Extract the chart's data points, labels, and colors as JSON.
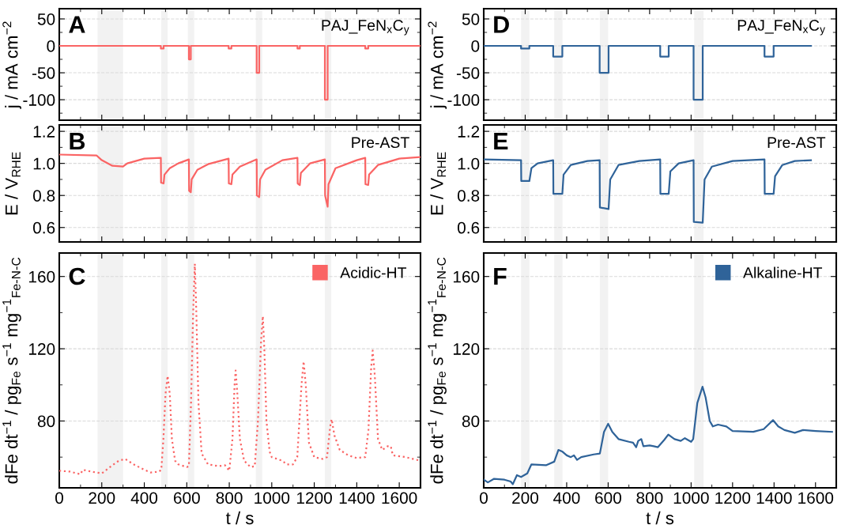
{
  "chart_data": [
    {
      "type": "line",
      "title": "A",
      "ylabel": "j / mA cm$^{−2}$",
      "annotations": [
        "PAJ_FeN$_{x}$C$_{y}$"
      ],
      "xlim": [
        0,
        1700
      ],
      "xticks": [
        0,
        200,
        400,
        600,
        800,
        1000,
        1200,
        1400,
        1600
      ],
      "ylim": [
        -138,
        69
      ],
      "yticks": [
        {
          "value": -100,
          "label": "-100"
        },
        {
          "value": -50,
          "label": "-50"
        },
        0,
        50
      ],
      "grid": "y",
      "tick_labels": "y",
      "bands": [
        {
          "axis": "x",
          "from": 180,
          "to": 300,
          "color": "#f2f2f2"
        },
        {
          "axis": "x",
          "from": 480,
          "to": 510,
          "color": "#f2f2f2"
        },
        {
          "axis": "x",
          "from": 605,
          "to": 635,
          "color": "#f2f2f2"
        },
        {
          "axis": "x",
          "from": 925,
          "to": 955,
          "color": "#f2f2f2"
        },
        {
          "axis": "x",
          "from": 1250,
          "to": 1280,
          "color": "#f2f2f2"
        }
      ],
      "series": [
        {
          "color": "#fa6464",
          "x": [
            0,
            478,
            478,
            491,
            491,
            610,
            610,
            619,
            619,
            797,
            797,
            810,
            810,
            929,
            929,
            941,
            941,
            1121,
            1121,
            1132,
            1132,
            1250,
            1250,
            1263,
            1263,
            1440,
            1440,
            1454,
            1454,
            1700
          ],
          "values": [
            0,
            0,
            -5,
            -5,
            0,
            0,
            -25,
            -25,
            0,
            0,
            -5,
            -5,
            0,
            0,
            -50,
            -50,
            0,
            0,
            -5,
            -5,
            0,
            0,
            -100,
            -100,
            0,
            0,
            -5,
            -5,
            0,
            0
          ]
        }
      ]
    },
    {
      "type": "line",
      "title": "B",
      "ylabel": "E / V$_{RHE}$",
      "annotations": [
        "Pre-AST"
      ],
      "xlim": [
        0,
        1700
      ],
      "xticks": [
        0,
        200,
        400,
        600,
        800,
        1000,
        1200,
        1400,
        1600
      ],
      "ylim": [
        0.51,
        1.24
      ],
      "yticks": [
        {
          "value": 0.6,
          "label": "0.6"
        },
        {
          "value": 0.8,
          "label": "0.8"
        },
        {
          "value": 1.0,
          "label": "1.0"
        },
        {
          "value": 1.2,
          "label": "1.2"
        }
      ],
      "grid": "y",
      "tick_labels": "y",
      "bands": [
        {
          "axis": "x",
          "from": 180,
          "to": 300,
          "color": "#f2f2f2"
        },
        {
          "axis": "x",
          "from": 480,
          "to": 510,
          "color": "#f2f2f2"
        },
        {
          "axis": "x",
          "from": 605,
          "to": 635,
          "color": "#f2f2f2"
        },
        {
          "axis": "x",
          "from": 925,
          "to": 955,
          "color": "#f2f2f2"
        },
        {
          "axis": "x",
          "from": 1250,
          "to": 1280,
          "color": "#f2f2f2"
        }
      ],
      "series": [
        {
          "color": "#fa6464",
          "x": [
            0,
            175,
            200,
            250,
            300,
            320,
            400,
            478,
            479,
            491,
            495,
            520,
            560,
            610,
            611,
            619,
            623,
            650,
            700,
            797,
            798,
            810,
            815,
            850,
            929,
            930,
            941,
            945,
            970,
            1050,
            1121,
            1122,
            1132,
            1137,
            1180,
            1250,
            1251,
            1263,
            1267,
            1300,
            1400,
            1440,
            1441,
            1454,
            1458,
            1500,
            1600,
            1700
          ],
          "values": [
            1.055,
            1.05,
            1.02,
            0.985,
            0.98,
            1.0,
            1.03,
            1.035,
            0.88,
            0.875,
            0.93,
            0.97,
            1.0,
            1.025,
            0.83,
            0.82,
            0.9,
            0.96,
            0.995,
            1.03,
            0.875,
            0.87,
            0.93,
            0.98,
            1.025,
            0.8,
            0.79,
            0.9,
            0.96,
            1.02,
            1.035,
            0.875,
            0.865,
            0.94,
            1.0,
            1.025,
            0.8,
            0.73,
            0.87,
            0.97,
            1.02,
            1.035,
            0.87,
            0.865,
            0.93,
            0.99,
            1.03,
            1.04
          ]
        }
      ]
    },
    {
      "type": "line",
      "title": "C",
      "xlabel": "t / s",
      "ylabel": "dFe dt$^{−1}$ / pg$_{Fe}$ s$^{−1}$ mg$^{−1}$$_{Fe-N-C}$",
      "xlim": [
        0,
        1700
      ],
      "xticks": [
        0,
        200,
        400,
        600,
        800,
        1000,
        1200,
        1400,
        1600
      ],
      "ylim": [
        43,
        173
      ],
      "yticks": [
        80,
        120,
        160
      ],
      "grid": "y",
      "legend": "top right",
      "line_style": "dotted",
      "bands": [
        {
          "axis": "x",
          "from": 180,
          "to": 300,
          "color": "#f2f2f2"
        },
        {
          "axis": "x",
          "from": 480,
          "to": 510,
          "color": "#f2f2f2"
        },
        {
          "axis": "x",
          "from": 605,
          "to": 635,
          "color": "#f2f2f2"
        },
        {
          "axis": "x",
          "from": 925,
          "to": 955,
          "color": "#f2f2f2"
        },
        {
          "axis": "x",
          "from": 1250,
          "to": 1280,
          "color": "#f2f2f2"
        }
      ],
      "series": [
        {
          "name": "Acidic-HT",
          "color": "#fa6464",
          "x": [
            0,
            50,
            100,
            110,
            150,
            200,
            250,
            280,
            310,
            350,
            400,
            430,
            470,
            480,
            490,
            500,
            510,
            520,
            530,
            545,
            560,
            600,
            610,
            620,
            630,
            638,
            645,
            655,
            670,
            700,
            750,
            780,
            800,
            815,
            825,
            830,
            838,
            850,
            870,
            900,
            920,
            935,
            950,
            958,
            965,
            975,
            990,
            1000,
            1050,
            1070,
            1100,
            1120,
            1140,
            1150,
            1160,
            1175,
            1200,
            1240,
            1260,
            1275,
            1282,
            1295,
            1320,
            1360,
            1400,
            1440,
            1455,
            1468,
            1475,
            1485,
            1500,
            1520,
            1545,
            1560,
            1570,
            1630,
            1700
          ],
          "values": [
            52.5,
            52,
            50.5,
            53,
            52,
            51,
            55.5,
            58,
            59,
            56,
            53,
            51.5,
            52,
            53,
            70,
            95,
            105,
            95,
            70,
            58,
            56,
            54.5,
            55,
            90,
            140,
            167,
            140,
            90,
            62,
            56,
            55,
            55.5,
            52.5,
            70,
            100,
            108,
            95,
            70,
            58,
            54.5,
            55,
            80,
            125,
            138,
            120,
            80,
            63,
            60,
            58,
            56,
            56,
            60,
            100,
            113,
            100,
            68,
            60,
            59,
            60,
            77,
            81,
            72,
            64,
            61,
            59.5,
            60,
            75,
            110,
            119,
            105,
            70,
            64,
            66,
            66,
            61,
            60,
            58
          ]
        }
      ]
    },
    {
      "type": "line",
      "title": "D",
      "ylabel": "j / mA cm$^{−2}$",
      "annotations": [
        "PAJ_FeN$_{x}$C$_{y}$"
      ],
      "xlim": [
        0,
        1700
      ],
      "xticks": [
        0,
        200,
        400,
        600,
        800,
        1000,
        1200,
        1400,
        1600
      ],
      "ylim": [
        -138,
        69
      ],
      "yticks": [
        {
          "value": -100,
          "label": "-100"
        },
        {
          "value": -50,
          "label": "-50"
        },
        0,
        50
      ],
      "grid": "y",
      "tick_labels": "y",
      "bands": [
        {
          "axis": "x",
          "from": 180,
          "to": 220,
          "color": "#f2f2f2"
        },
        {
          "axis": "x",
          "from": 340,
          "to": 380,
          "color": "#f2f2f2"
        },
        {
          "axis": "x",
          "from": 560,
          "to": 600,
          "color": "#f2f2f2"
        },
        {
          "axis": "x",
          "from": 1015,
          "to": 1060,
          "color": "#f2f2f2"
        }
      ],
      "series": [
        {
          "color": "#2f6399",
          "x": [
            0,
            180,
            180,
            220,
            220,
            335,
            335,
            379,
            379,
            559,
            559,
            602,
            602,
            851,
            851,
            892,
            892,
            1012,
            1012,
            1056,
            1056,
            1354,
            1354,
            1398,
            1398,
            1578
          ],
          "values": [
            0,
            0,
            -5,
            -5,
            0,
            0,
            -20,
            -20,
            0,
            0,
            -50,
            -50,
            0,
            0,
            -20,
            -20,
            0,
            0,
            -100,
            -100,
            0,
            0,
            -20,
            -20,
            0,
            0
          ]
        }
      ]
    },
    {
      "type": "line",
      "title": "E",
      "ylabel": "E / V$_{RHE}$",
      "annotations": [
        "Pre-AST"
      ],
      "xlim": [
        0,
        1700
      ],
      "xticks": [
        0,
        200,
        400,
        600,
        800,
        1000,
        1200,
        1400,
        1600
      ],
      "ylim": [
        0.51,
        1.24
      ],
      "yticks": [
        {
          "value": 0.6,
          "label": "0.6"
        },
        {
          "value": 0.8,
          "label": "0.8"
        },
        {
          "value": 1.0,
          "label": "1.0"
        },
        {
          "value": 1.2,
          "label": "1.2"
        }
      ],
      "grid": "y",
      "tick_labels": "y",
      "bands": [
        {
          "axis": "x",
          "from": 180,
          "to": 220,
          "color": "#f2f2f2"
        },
        {
          "axis": "x",
          "from": 340,
          "to": 380,
          "color": "#f2f2f2"
        },
        {
          "axis": "x",
          "from": 560,
          "to": 600,
          "color": "#f2f2f2"
        },
        {
          "axis": "x",
          "from": 1015,
          "to": 1060,
          "color": "#f2f2f2"
        }
      ],
      "series": [
        {
          "color": "#2f6399",
          "x": [
            0,
            180,
            181,
            220,
            230,
            260,
            335,
            336,
            379,
            385,
            420,
            500,
            559,
            560,
            602,
            610,
            650,
            750,
            851,
            852,
            892,
            900,
            940,
            1012,
            1013,
            1056,
            1065,
            1100,
            1200,
            1354,
            1355,
            1398,
            1405,
            1440,
            1500,
            1578
          ],
          "values": [
            1.025,
            1.02,
            0.89,
            0.89,
            0.97,
            1.0,
            1.02,
            0.81,
            0.81,
            0.93,
            0.99,
            1.015,
            1.02,
            0.725,
            0.715,
            0.9,
            0.99,
            1.015,
            1.025,
            0.81,
            0.81,
            0.95,
            1.0,
            1.02,
            0.635,
            0.63,
            0.9,
            0.98,
            1.015,
            1.025,
            0.81,
            0.81,
            0.92,
            0.99,
            1.015,
            1.02
          ]
        }
      ]
    },
    {
      "type": "line",
      "title": "F",
      "xlabel": "t / s",
      "ylabel": "dFe dt$^{−1}$ / pg$_{Fe}$ s$^{−1}$ mg$^{−1}$$_{Fe-N-C}$",
      "xlim": [
        0,
        1700
      ],
      "xticks": [
        0,
        200,
        400,
        600,
        800,
        1000,
        1200,
        1400,
        1600
      ],
      "ylim": [
        43,
        173
      ],
      "yticks": [
        80,
        120,
        160
      ],
      "grid": "y",
      "legend": "top right",
      "bands": [
        {
          "axis": "x",
          "from": 180,
          "to": 220,
          "color": "#f2f2f2"
        },
        {
          "axis": "x",
          "from": 340,
          "to": 380,
          "color": "#f2f2f2"
        },
        {
          "axis": "x",
          "from": 560,
          "to": 600,
          "color": "#f2f2f2"
        },
        {
          "axis": "x",
          "from": 1015,
          "to": 1060,
          "color": "#f2f2f2"
        }
      ],
      "series": [
        {
          "name": "Alkaline-HT",
          "color": "#2f6399",
          "x": [
            0,
            20,
            50,
            100,
            130,
            140,
            160,
            180,
            210,
            230,
            300,
            340,
            360,
            380,
            400,
            420,
            435,
            450,
            470,
            530,
            560,
            580,
            600,
            620,
            650,
            700,
            720,
            735,
            745,
            760,
            770,
            800,
            820,
            840,
            870,
            890,
            920,
            950,
            970,
            1000,
            1010,
            1030,
            1055,
            1070,
            1090,
            1105,
            1130,
            1170,
            1200,
            1300,
            1350,
            1395,
            1420,
            1450,
            1500,
            1540,
            1600,
            1680
          ],
          "values": [
            47.5,
            46,
            48,
            47.5,
            46.5,
            45,
            50,
            49,
            51,
            56,
            55.5,
            57.5,
            64,
            63,
            61,
            60,
            61,
            58.5,
            60,
            61.5,
            62,
            74,
            78.5,
            74,
            70,
            68.5,
            68,
            65.5,
            69,
            70,
            66,
            66.5,
            66,
            65.5,
            69.5,
            72.5,
            70,
            69,
            70.5,
            68.5,
            70,
            90,
            99,
            93,
            80,
            77,
            78,
            77,
            74.5,
            74,
            75.5,
            80.5,
            77,
            75,
            73.5,
            75,
            74.5,
            74
          ]
        }
      ]
    }
  ]
}
